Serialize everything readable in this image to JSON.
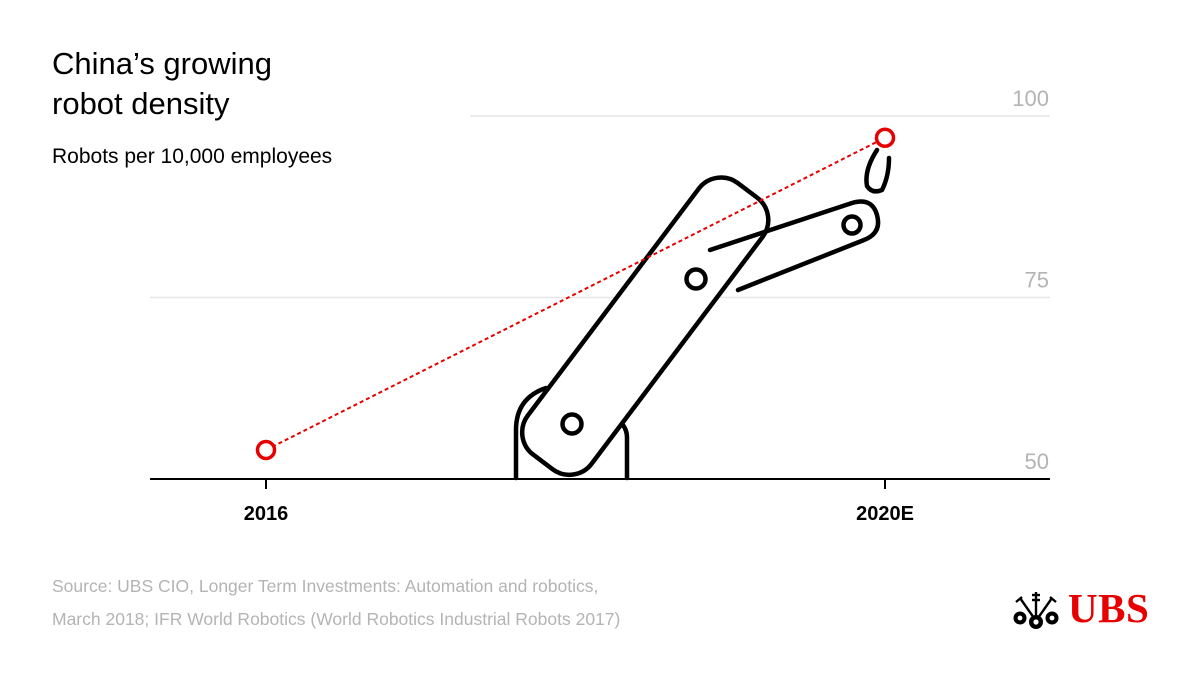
{
  "header": {
    "title_line1": "China’s growing",
    "title_line2": "robot density",
    "subtitle": "Robots per 10,000 employees"
  },
  "chart_data": {
    "type": "line",
    "categories": [
      "2016",
      "2020E"
    ],
    "values": [
      54,
      97
    ],
    "ylim": [
      50,
      100
    ],
    "yticks": [
      "50",
      "75",
      "100"
    ],
    "grid": true,
    "line_style": "dashed",
    "colors": {
      "series": "#e60000",
      "grid": "#e6e6e6",
      "axis": "#000000",
      "tick_label": "#b4b4b4"
    },
    "illustration": "robot-arm"
  },
  "footer": {
    "source_line1": "Source: UBS CIO, Longer Term Investments: Automation and robotics,",
    "source_line2": "March 2018; IFR World Robotics (World Robotics Industrial Robots 2017)"
  },
  "brand": {
    "name": "UBS",
    "color": "#e60000",
    "icon": "three-keys-icon"
  }
}
